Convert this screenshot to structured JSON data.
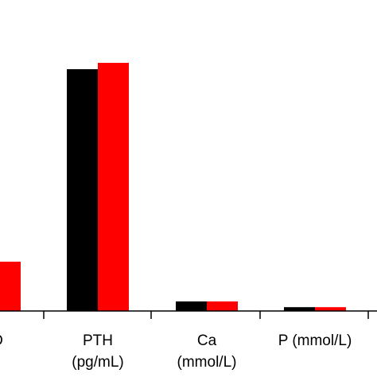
{
  "chart_data": {
    "type": "bar",
    "categories": [
      [
        "H)D",
        "nL)"
      ],
      [
        "PTH",
        "(pg/mL)"
      ],
      [
        "Ca",
        "(mmol/L)"
      ],
      [
        "P (mmol/L)"
      ]
    ],
    "series": [
      {
        "color": "#000000",
        "values": [
          null,
          76.0,
          3.0,
          1.2
        ]
      },
      {
        "color": "#ff0000",
        "values": [
          15.5,
          78.0,
          3.0,
          1.2
        ]
      }
    ],
    "ylim": [
      0,
      100
    ],
    "grid": false,
    "legend": "none"
  }
}
